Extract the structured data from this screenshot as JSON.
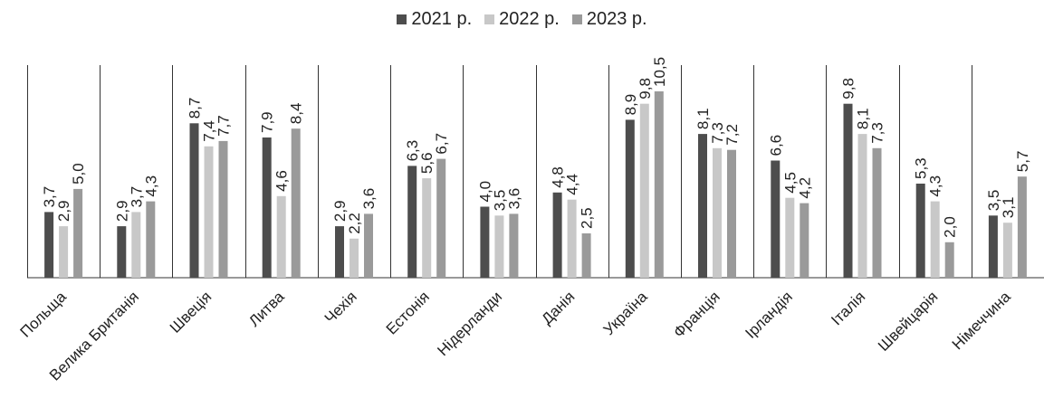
{
  "chart_data": {
    "type": "bar",
    "categories": [
      "Польща",
      "Велика Британія",
      "Швеція",
      "Литва",
      "Чехія",
      "Естонія",
      "Нідерланди",
      "Данія",
      "Україна",
      "Франція",
      "Ірландія",
      "Італія",
      "Швейцарія",
      "Німеччина"
    ],
    "series": [
      {
        "name": "2021 р.",
        "color": "#4d4d4d",
        "values": [
          3.7,
          2.9,
          8.7,
          7.9,
          2.9,
          6.3,
          4.0,
          4.8,
          8.9,
          8.1,
          6.6,
          9.8,
          5.3,
          3.5
        ],
        "labels": [
          "3,7",
          "2,9",
          "8,7",
          "7,9",
          "2,9",
          "6,3",
          "4,0",
          "4,8",
          "8,9",
          "8,1",
          "6,6",
          "9,8",
          "5,3",
          "3,5"
        ]
      },
      {
        "name": "2022 р.",
        "color": "#c8c8c8",
        "values": [
          2.9,
          3.7,
          7.4,
          4.6,
          2.2,
          5.6,
          3.5,
          4.4,
          9.8,
          7.3,
          4.5,
          8.1,
          4.3,
          3.1
        ],
        "labels": [
          "2,9",
          "3,7",
          "7,4",
          "4,6",
          "2,2",
          "5,6",
          "3,5",
          "4,4",
          "9,8",
          "7,3",
          "4,5",
          "8,1",
          "4,3",
          "3,1"
        ]
      },
      {
        "name": "2023 р.",
        "color": "#9a9a9a",
        "values": [
          5.0,
          4.3,
          7.7,
          8.4,
          3.6,
          6.7,
          3.6,
          2.5,
          10.5,
          7.2,
          4.2,
          7.3,
          2.0,
          5.7
        ],
        "labels": [
          "5,0",
          "4,3",
          "7,7",
          "8,4",
          "3,6",
          "6,7",
          "3,6",
          "2,5",
          "10,5",
          "7,2",
          "4,2",
          "7,3",
          "2,0",
          "5,7"
        ]
      }
    ],
    "title": "",
    "xlabel": "",
    "ylabel": "",
    "ylim": [
      0,
      10.5
    ],
    "grid": false,
    "legend_position": "top-center",
    "category_separators": true
  }
}
